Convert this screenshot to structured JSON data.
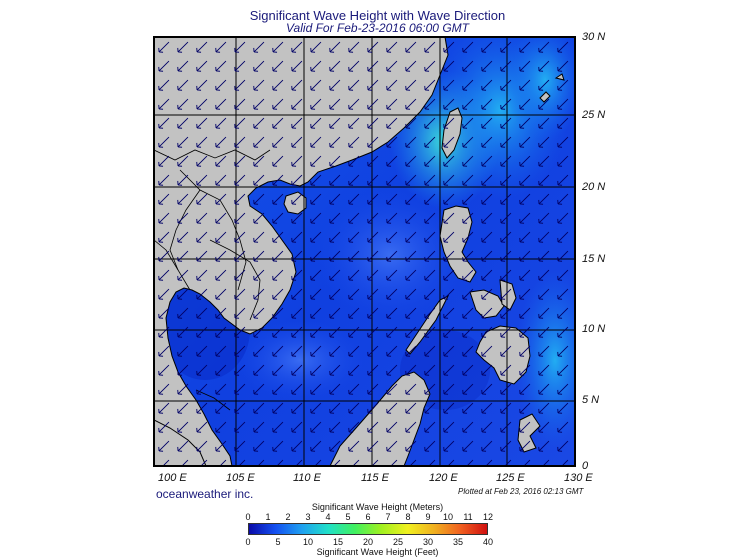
{
  "title": "Significant Wave Height with Wave Direction",
  "subtitle": "Valid For Feb-23-2016 06:00 GMT",
  "credit": "oceanweather inc.",
  "plotted": "Plotted at Feb 23, 2016 02:13 GMT",
  "map": {
    "lat_labels": [
      "30 N",
      "25 N",
      "20 N",
      "15 N",
      "10 N",
      "5 N",
      "0"
    ],
    "lon_labels": [
      "100 E",
      "105 E",
      "110 E",
      "115 E",
      "120 E",
      "125 E",
      "130 E"
    ],
    "lon_range_deg": [
      99,
      130
    ],
    "lat_range_deg": [
      0,
      30
    ],
    "wave_direction": "toward southwest",
    "colors": {
      "land": "#c2c2c2",
      "coast": "#000000",
      "grid": "#000000",
      "arrow": "#000066"
    }
  },
  "legend": {
    "meters_title": "Significant Wave Height (Meters)",
    "feet_title": "Significant Wave Height (Feet)",
    "meters_ticks": [
      "0",
      "1",
      "2",
      "3",
      "4",
      "5",
      "6",
      "7",
      "8",
      "9",
      "10",
      "11",
      "12"
    ],
    "feet_ticks": [
      "0",
      "5",
      "10",
      "15",
      "20",
      "25",
      "30",
      "35",
      "40"
    ],
    "meters_range": [
      0,
      12
    ],
    "feet_range": [
      0,
      40
    ],
    "color_stops": [
      "#0a0aa8",
      "#1450f0",
      "#1fa0f0",
      "#20e0c8",
      "#40f060",
      "#a0f020",
      "#f0f020",
      "#f0b020",
      "#f06020",
      "#d01010"
    ]
  }
}
